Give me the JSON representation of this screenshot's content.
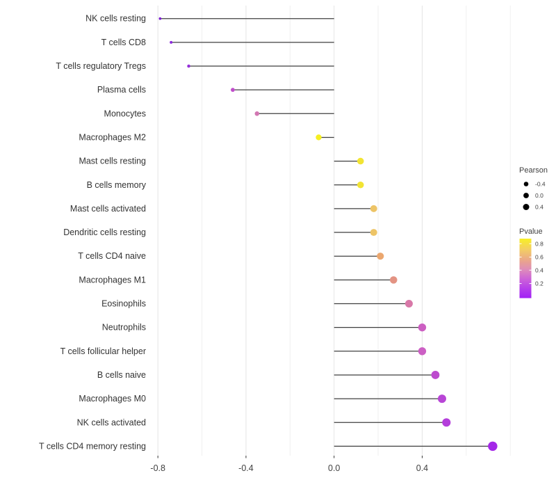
{
  "chart_data": {
    "type": "scatter",
    "style": "lollipop",
    "title": "",
    "xlabel": "",
    "ylabel": "",
    "orientation": "horizontal",
    "grid": true,
    "background": "#ffffff",
    "categories": [
      "NK cells resting",
      "T cells CD8",
      "T cells regulatory  Tregs",
      "Plasma cells",
      "Monocytes",
      "Macrophages M2",
      "Mast cells resting",
      "B cells memory",
      "Mast cells activated",
      "Dendritic cells resting",
      "T cells CD4 naive",
      "Macrophages M1",
      "Eosinophils",
      "Neutrophils",
      "T cells follicular helper",
      "B cells naive",
      "Macrophages M0",
      "NK cells activated",
      "T cells CD4 memory resting"
    ],
    "series": [
      {
        "name": "Pearson correlation",
        "values": [
          -0.79,
          -0.74,
          -0.66,
          -0.46,
          -0.35,
          -0.07,
          0.12,
          0.12,
          0.18,
          0.18,
          0.21,
          0.27,
          0.34,
          0.4,
          0.4,
          0.46,
          0.49,
          0.51,
          0.72
        ]
      }
    ],
    "point_colors": [
      "#7B1ED2",
      "#8B2ADC",
      "#9530D8",
      "#C04ECB",
      "#D277B2",
      "#F6EF21",
      "#F2E433",
      "#F2E433",
      "#EDC466",
      "#EDC466",
      "#EBA76F",
      "#E39383",
      "#D878A8",
      "#CC5FC2",
      "#CC5FC4",
      "#BD4BCE",
      "#B845D6",
      "#B43EDB",
      "#A428E8"
    ],
    "stem_color": "#3F3F3F",
    "xlim": [
      -0.93,
      0.82
    ],
    "x_major_ticks": [
      "-0.8",
      "-0.4",
      "0.0",
      "0.4"
    ],
    "x_major_values": [
      -0.8,
      -0.4,
      0.0,
      0.4
    ],
    "x_minor_values": [
      -0.6,
      -0.2,
      0.2,
      0.6,
      0.8
    ],
    "legend": {
      "size_legend": {
        "title": "Pearson",
        "entries": [
          "-0.4",
          "0.0",
          "0.4"
        ],
        "dot_color": "#000000"
      },
      "color_legend": {
        "title": "Pvalue",
        "tick_labels": [
          "0.8",
          "0.6",
          "0.4",
          "0.2"
        ],
        "gradient_stops": [
          {
            "offset": 0.0,
            "color": "#F8EF25"
          },
          {
            "offset": 0.18,
            "color": "#F3CE63"
          },
          {
            "offset": 0.38,
            "color": "#E9A38E"
          },
          {
            "offset": 0.52,
            "color": "#DE8CBA"
          },
          {
            "offset": 0.68,
            "color": "#CC62D8"
          },
          {
            "offset": 0.84,
            "color": "#B53EEA"
          },
          {
            "offset": 1.0,
            "color": "#A120F5"
          }
        ]
      }
    },
    "colors": {
      "grid_major": "#E4E4E4",
      "grid_minor": "#F0F0F0",
      "axis_text": "#404040",
      "label_text": "#333333"
    }
  }
}
